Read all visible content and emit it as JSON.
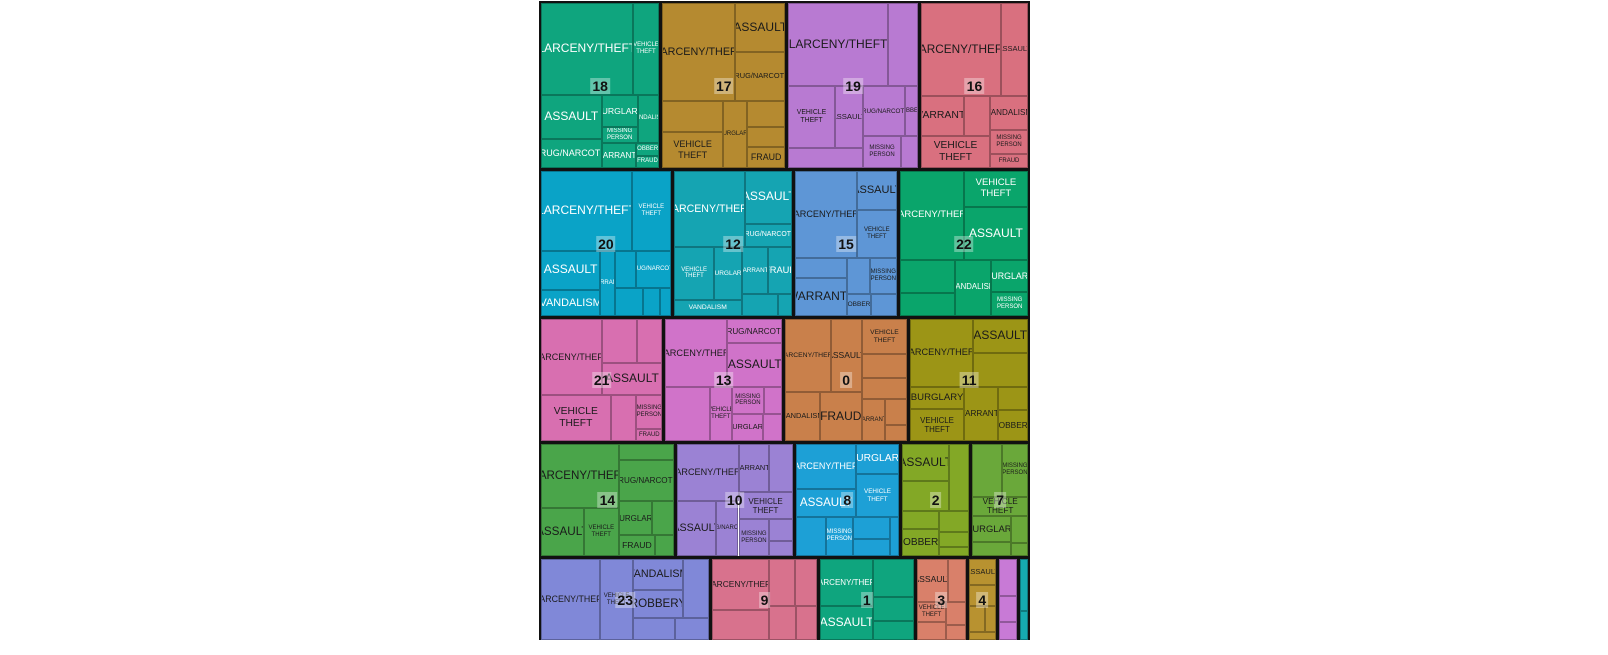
{
  "chart_data": {
    "type": "treemap",
    "title": "",
    "groups": [
      {
        "name": "18",
        "color": "#0fa57e",
        "text": "#ffffff",
        "children": [
          {
            "name": "LARCENY/THEFT",
            "value": 1449
          },
          {
            "name": "VEHICLE THEFT",
            "value": 423
          },
          {
            "name": "ASSAULT",
            "value": 464
          },
          {
            "name": "DRUG/NARCOTIC",
            "value": 300
          },
          {
            "name": "BURGLARY",
            "value": 200
          },
          {
            "name": "MISSING PERSON",
            "value": 100
          },
          {
            "name": "VANDALISM",
            "value": 180
          },
          {
            "name": "WARRANTS",
            "value": 146
          },
          {
            "name": "ROBBERY",
            "value": 51
          },
          {
            "name": "FRAUD",
            "value": 51
          }
        ]
      },
      {
        "name": "17",
        "color": "#b58a30",
        "text": "#1a1a1a",
        "children": [
          {
            "name": "LARCENY/THEFT",
            "value": 1230
          },
          {
            "name": "ASSAULT",
            "value": 420
          },
          {
            "name": "DRUG/NARCOTIC",
            "value": 420
          },
          {
            "name": "",
            "value": 320
          },
          {
            "name": "VEHICLE THEFT",
            "value": 380
          },
          {
            "name": "BURGLARY",
            "value": 280
          },
          {
            "name": "",
            "value": 170
          },
          {
            "name": "",
            "value": 130
          },
          {
            "name": "FRAUD",
            "value": 140
          }
        ]
      },
      {
        "name": "19",
        "color": "#b87ad2",
        "text": "#1a1a1a",
        "children": [
          {
            "name": "LARCENY/THEFT",
            "value": 1420
          },
          {
            "name": "",
            "value": 430
          },
          {
            "name": "VEHICLE THEFT",
            "value": 500
          },
          {
            "name": "ASSAULT",
            "value": 300
          },
          {
            "name": "",
            "value": 250
          },
          {
            "name": "DRUG/NARCOTIC",
            "value": 370
          },
          {
            "name": "ROBBERY",
            "value": 110
          },
          {
            "name": "MISSING PERSON",
            "value": 210
          },
          {
            "name": "",
            "value": 90
          }
        ]
      },
      {
        "name": "16",
        "color": "#d9707f",
        "text": "#1a1a1a",
        "children": [
          {
            "name": "LARCENY/THEFT",
            "value": 1280
          },
          {
            "name": "ASSAULT",
            "value": 440
          },
          {
            "name": "WARRANTS",
            "value": 300
          },
          {
            "name": "",
            "value": 180
          },
          {
            "name": "VEHICLE THEFT",
            "value": 380
          },
          {
            "name": "VANDALISM",
            "value": 220
          },
          {
            "name": "MISSING PERSON",
            "value": 160
          },
          {
            "name": "FRAUD",
            "value": 90
          }
        ]
      },
      {
        "name": "20",
        "color": "#0aa3c7",
        "text": "#ffffff",
        "children": [
          {
            "name": "LARCENY/THEFT",
            "value": 1400
          },
          {
            "name": "VEHICLE THEFT",
            "value": 600
          },
          {
            "name": "ASSAULT",
            "value": 450
          },
          {
            "name": "VANDALISM",
            "value": 300
          },
          {
            "name": "WARRANTS",
            "value": 190
          },
          {
            "name": "",
            "value": 150
          },
          {
            "name": "DRUG/NARCOTIC",
            "value": 250
          },
          {
            "name": "",
            "value": 150
          },
          {
            "name": "",
            "value": 95
          },
          {
            "name": "",
            "value": 60
          }
        ]
      },
      {
        "name": "12",
        "color": "#15a4b2",
        "text": "#ffffff",
        "children": [
          {
            "name": "LARCENY/THEFT",
            "value": 1050
          },
          {
            "name": "ASSAULT",
            "value": 480
          },
          {
            "name": "DRUG/NARCOTIC",
            "value": 210
          },
          {
            "name": "VEHICLE THEFT",
            "value": 420
          },
          {
            "name": "BURGLARY",
            "value": 280
          },
          {
            "name": "VANDALISM",
            "value": 210
          },
          {
            "name": "WARRANTS",
            "value": 240
          },
          {
            "name": "FRAUD",
            "value": 220
          },
          {
            "name": "",
            "value": 160
          },
          {
            "name": "",
            "value": 60
          }
        ]
      },
      {
        "name": "15",
        "color": "#5e96d6",
        "text": "#1a1a1a",
        "children": [
          {
            "name": "LARCENY/THEFT",
            "value": 1050
          },
          {
            "name": "ASSAULT",
            "value": 300
          },
          {
            "name": "VEHICLE THEFT",
            "value": 380
          },
          {
            "name": "",
            "value": 200
          },
          {
            "name": "WARRANTS",
            "value": 380
          },
          {
            "name": "",
            "value": 160
          },
          {
            "name": "MISSING PERSON",
            "value": 190
          },
          {
            "name": "ROBBERY",
            "value": 100
          },
          {
            "name": "",
            "value": 110
          }
        ]
      },
      {
        "name": "22",
        "color": "#0aa56b",
        "text": "#ffffff",
        "children": [
          {
            "name": "LARCENY/THEFT",
            "value": 1100
          },
          {
            "name": "VEHICLE THEFT",
            "value": 450
          },
          {
            "name": "ASSAULT",
            "value": 650
          },
          {
            "name": "",
            "value": 350
          },
          {
            "name": "",
            "value": 250
          },
          {
            "name": "VANDALISM",
            "value": 400
          },
          {
            "name": "BURGLARY",
            "value": 230
          },
          {
            "name": "MISSING PERSON",
            "value": 170
          }
        ]
      },
      {
        "name": "21",
        "color": "#d86fb0",
        "text": "#1a1a1a",
        "children": [
          {
            "name": "LARCENY/THEFT",
            "value": 900
          },
          {
            "name": "",
            "value": 300
          },
          {
            "name": "",
            "value": 220
          },
          {
            "name": "ASSAULT",
            "value": 380
          },
          {
            "name": "VEHICLE THEFT",
            "value": 620
          },
          {
            "name": "",
            "value": 230
          },
          {
            "name": "MISSING PERSON",
            "value": 170
          },
          {
            "name": "FRAUD",
            "value": 60
          }
        ]
      },
      {
        "name": "13",
        "color": "#d073c9",
        "text": "#1a1a1a",
        "children": [
          {
            "name": "LARCENY/THEFT",
            "value": 820
          },
          {
            "name": "DRUG/NARCOTIC",
            "value": 260
          },
          {
            "name": "ASSAULT",
            "value": 460
          },
          {
            "name": "",
            "value": 470
          },
          {
            "name": "VEHICLE THEFT",
            "value": 240
          },
          {
            "name": "MISSING PERSON",
            "value": 170
          },
          {
            "name": "",
            "value": 100
          },
          {
            "name": "BURGLARY",
            "value": 160
          },
          {
            "name": "",
            "value": 100
          }
        ]
      },
      {
        "name": "0",
        "color": "#c9804b",
        "text": "#1a1a1a",
        "children": [
          {
            "name": "LARCENY/THEFT",
            "value": 650
          },
          {
            "name": "ASSAULT",
            "value": 440
          },
          {
            "name": "VANDALISM",
            "value": 330
          },
          {
            "name": "FRAUD",
            "value": 400
          },
          {
            "name": "VEHICLE THEFT",
            "value": 310
          },
          {
            "name": "",
            "value": 210
          },
          {
            "name": "",
            "value": 190
          },
          {
            "name": "WARRANTS",
            "value": 190
          },
          {
            "name": "",
            "value": 110
          },
          {
            "name": "",
            "value": 70
          }
        ]
      },
      {
        "name": "11",
        "color": "#9c9516",
        "text": "#1a1a1a",
        "children": [
          {
            "name": "LARCENY/THEFT",
            "value": 820
          },
          {
            "name": "ASSAULT",
            "value": 370
          },
          {
            "name": "",
            "value": 360
          },
          {
            "name": "BURGLARY",
            "value": 240
          },
          {
            "name": "VEHICLE THEFT",
            "value": 330
          },
          {
            "name": "WARRANTS",
            "value": 360
          },
          {
            "name": "",
            "value": 140
          },
          {
            "name": "ROBBERY",
            "value": 180
          }
        ]
      },
      {
        "name": "14",
        "color": "#4aa54a",
        "text": "#1a1a1a",
        "children": [
          {
            "name": "LARCENY/THEFT",
            "value": 880
          },
          {
            "name": "ASSAULT",
            "value": 360
          },
          {
            "name": "VEHICLE THEFT",
            "value": 300
          },
          {
            "name": "",
            "value": 150
          },
          {
            "name": "DRUG/NARCOTIC",
            "value": 400
          },
          {
            "name": "BURGLARY",
            "value": 200
          },
          {
            "name": "",
            "value": 130
          },
          {
            "name": "FRAUD",
            "value": 130
          },
          {
            "name": "",
            "value": 70
          }
        ]
      },
      {
        "name": "10",
        "color": "#9b82d4",
        "text": "#1a1a1a",
        "children": [
          {
            "name": "LARCENY/THEFT",
            "value": 620
          },
          {
            "name": "ASSAULT",
            "value": 380
          },
          {
            "name": "DRUG/NARCOTIC",
            "value": 220
          },
          {
            "name": "WARRANTS",
            "value": 260
          },
          {
            "name": "",
            "value": 200
          },
          {
            "name": "VEHICLE THEFT",
            "value": 260
          },
          {
            "name": "MISSING PERSON",
            "value": 200
          },
          {
            "name": "",
            "value": 90
          },
          {
            "name": "",
            "value": 60
          }
        ]
      },
      {
        "name": "8",
        "color": "#1da0d6",
        "text": "#ffffff",
        "children": [
          {
            "name": "LARCENY/THEFT",
            "value": 480
          },
          {
            "name": "ASSAULT",
            "value": 300
          },
          {
            "name": "BURGLARY",
            "value": 230
          },
          {
            "name": "VEHICLE THEFT",
            "value": 320
          },
          {
            "name": "",
            "value": 210
          },
          {
            "name": "MISSING PERSON",
            "value": 190
          },
          {
            "name": "",
            "value": 150
          },
          {
            "name": "",
            "value": 110
          },
          {
            "name": "",
            "value": 60
          }
        ]
      },
      {
        "name": "2",
        "color": "#83a826",
        "text": "#1a1a1a",
        "children": [
          {
            "name": "ASSAULT",
            "value": 310
          },
          {
            "name": "",
            "value": 250
          },
          {
            "name": "",
            "value": 250
          },
          {
            "name": "",
            "value": 120
          },
          {
            "name": "ROBBERY",
            "value": 180
          },
          {
            "name": "",
            "value": 120
          },
          {
            "name": "",
            "value": 80
          },
          {
            "name": "",
            "value": 50
          }
        ]
      },
      {
        "name": "7",
        "color": "#6aa83a",
        "text": "#1a1a1a",
        "children": [
          {
            "name": "",
            "value": 280
          },
          {
            "name": "MISSING PERSON",
            "value": 250
          },
          {
            "name": "VEHICLE THEFT",
            "value": 200
          },
          {
            "name": "BURGLARY",
            "value": 180
          },
          {
            "name": "",
            "value": 100
          },
          {
            "name": "",
            "value": 80
          },
          {
            "name": "",
            "value": 40
          }
        ]
      },
      {
        "name": "23",
        "color": "#8088d8",
        "text": "#1a1a1a",
        "children": [
          {
            "name": "LARCENY/THEFT",
            "value": 620
          },
          {
            "name": "VEHICLE THEFT",
            "value": 340
          },
          {
            "name": "VANDALISM",
            "value": 200
          },
          {
            "name": "ROBBERY",
            "value": 180
          },
          {
            "name": "",
            "value": 200
          },
          {
            "name": "",
            "value": 120
          },
          {
            "name": "",
            "value": 100
          }
        ]
      },
      {
        "name": "9",
        "color": "#d8728d",
        "text": "#1a1a1a",
        "children": [
          {
            "name": "LARCENY/THEFT",
            "value": 380
          },
          {
            "name": "",
            "value": 220
          },
          {
            "name": "",
            "value": 160
          },
          {
            "name": "",
            "value": 130
          },
          {
            "name": "",
            "value": 120
          },
          {
            "name": "",
            "value": 90
          }
        ]
      },
      {
        "name": "1",
        "color": "#0fa57e",
        "text": "#ffffff",
        "children": [
          {
            "name": "LARCENY/THEFT",
            "value": 330
          },
          {
            "name": "ASSAULT",
            "value": 240
          },
          {
            "name": "",
            "value": 200
          },
          {
            "name": "",
            "value": 130
          },
          {
            "name": "",
            "value": 100
          }
        ]
      },
      {
        "name": "3",
        "color": "#d9806a",
        "text": "#1a1a1a",
        "children": [
          {
            "name": "ASSAULT",
            "value": 180
          },
          {
            "name": "",
            "value": 100
          },
          {
            "name": "VEHICLE THEFT",
            "value": 80
          },
          {
            "name": "",
            "value": 70
          },
          {
            "name": "",
            "value": 60
          },
          {
            "name": "",
            "value": 40
          }
        ]
      },
      {
        "name": "4",
        "color": "#b89230",
        "text": "#1a1a1a",
        "children": [
          {
            "name": "ASSAULT",
            "value": 100
          },
          {
            "name": "",
            "value": 80
          },
          {
            "name": "",
            "value": 60
          },
          {
            "name": "",
            "value": 40
          },
          {
            "name": "",
            "value": 30
          }
        ]
      },
      {
        "name": "",
        "color": "#c87ad6",
        "text": "#1a1a1a",
        "children": [
          {
            "name": "",
            "value": 100
          },
          {
            "name": "",
            "value": 70
          },
          {
            "name": "",
            "value": 50
          }
        ]
      },
      {
        "name": "",
        "color": "#16aab0",
        "text": "#ffffff",
        "children": [
          {
            "name": "",
            "value": 70
          },
          {
            "name": "",
            "value": 40
          }
        ]
      }
    ]
  }
}
